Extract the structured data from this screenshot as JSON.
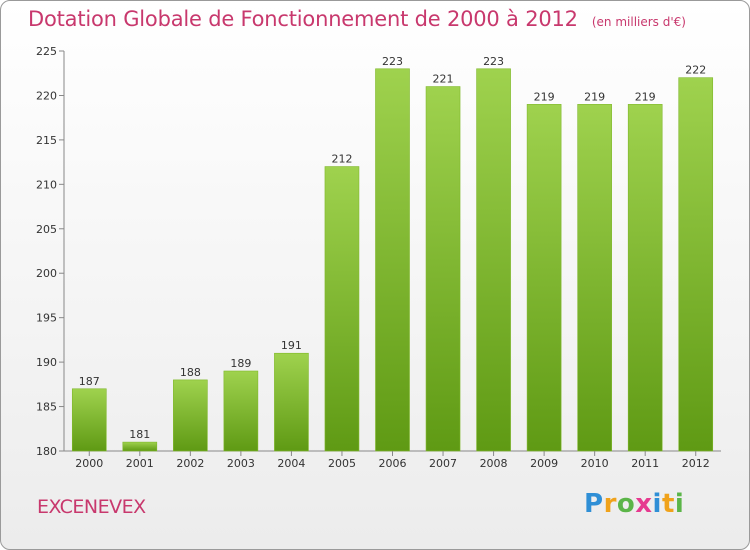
{
  "header": {
    "title": "Dotation Globale de Fonctionnement de 2000 à 2012",
    "subtitle": "(en milliers d'€)"
  },
  "footer": {
    "commune": "EXCENEVEX",
    "logo_letters": [
      "P",
      "r",
      "o",
      "x",
      "i",
      "t",
      "i"
    ],
    "logo_colors": [
      "#2f8fd6",
      "#f0a21a",
      "#5bb548",
      "#e63a8f",
      "#2f8fd6",
      "#f0a21a",
      "#5bb548"
    ]
  },
  "chart_data": {
    "type": "bar",
    "title": "Dotation Globale de Fonctionnement de 2000 à 2012",
    "subtitle": "(en milliers d'€)",
    "categories": [
      "2000",
      "2001",
      "2002",
      "2003",
      "2004",
      "2005",
      "2006",
      "2007",
      "2008",
      "2009",
      "2010",
      "2011",
      "2012"
    ],
    "values": [
      187,
      181,
      188,
      189,
      191,
      212,
      223,
      221,
      223,
      219,
      219,
      219,
      222
    ],
    "ylim": [
      180,
      225
    ],
    "yticks": [
      180,
      185,
      190,
      195,
      200,
      205,
      210,
      215,
      220,
      225
    ],
    "xlabel": "",
    "ylabel": "",
    "grid": false,
    "bar_color_light": "#9fd24e",
    "bar_color_dark": "#5f9a14"
  }
}
